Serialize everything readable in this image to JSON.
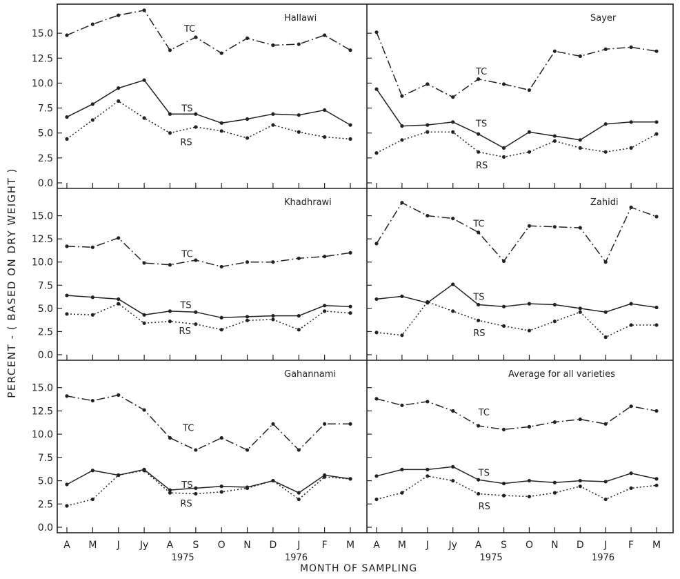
{
  "chart_data": {
    "type": "line",
    "ylabel": "PERCENT - ( BASED ON DRY WEIGHT )",
    "xlabel": "MONTH OF SAMPLING",
    "x_categories": [
      "A",
      "M",
      "J",
      "Jy",
      "A",
      "S",
      "O",
      "N",
      "D",
      "J",
      "F",
      "M"
    ],
    "year_labels": [
      {
        "text": "1975",
        "at_index": 4.5
      },
      {
        "text": "1976",
        "at_index": 8.9
      }
    ],
    "y_ticks": [
      "0.0",
      "2.5",
      "5.0",
      "7.5",
      "10.0",
      "12.5",
      "15.0"
    ],
    "ylim": [
      0,
      17.5
    ],
    "legend": "none",
    "grid": false,
    "panels": [
      {
        "title": "Hallawi",
        "series": [
          {
            "name": "TC",
            "style": "dashdot",
            "values": [
              14.8,
              15.9,
              16.8,
              17.3,
              13.3,
              14.6,
              13.0,
              14.5,
              13.8,
              13.9,
              14.8,
              13.3
            ],
            "label_at": [
              4.55,
              15.5
            ]
          },
          {
            "name": "TS",
            "style": "solid",
            "values": [
              6.6,
              7.9,
              9.5,
              10.3,
              6.9,
              6.9,
              6.0,
              6.4,
              6.9,
              6.8,
              7.3,
              5.8
            ],
            "label_at": [
              4.45,
              7.5
            ]
          },
          {
            "name": "RS",
            "style": "dotted",
            "values": [
              4.4,
              6.3,
              8.2,
              6.5,
              5.0,
              5.6,
              5.2,
              4.5,
              5.8,
              5.1,
              4.6,
              4.4
            ],
            "label_at": [
              4.4,
              4.1
            ]
          }
        ]
      },
      {
        "title": "Sayer",
        "series": [
          {
            "name": "TC",
            "style": "dashdot",
            "values": [
              15.1,
              8.7,
              9.9,
              8.6,
              10.4,
              9.9,
              9.3,
              13.2,
              12.7,
              13.4,
              13.6,
              13.2
            ],
            "label_at": [
              3.9,
              11.2
            ]
          },
          {
            "name": "TS",
            "style": "solid",
            "values": [
              9.4,
              5.7,
              5.8,
              6.1,
              4.9,
              3.5,
              5.1,
              4.7,
              4.3,
              5.9,
              6.1,
              6.1
            ],
            "label_at": [
              3.9,
              6.0
            ]
          },
          {
            "name": "RS",
            "style": "dotted",
            "values": [
              3.0,
              4.3,
              5.1,
              5.1,
              3.1,
              2.6,
              3.1,
              4.2,
              3.5,
              3.1,
              3.5,
              4.9
            ],
            "label_at": [
              3.9,
              1.8
            ]
          }
        ]
      },
      {
        "title": "Khadhrawi",
        "series": [
          {
            "name": "TC",
            "style": "dashdot",
            "values": [
              11.7,
              11.6,
              12.6,
              9.9,
              9.7,
              10.2,
              9.5,
              10.0,
              10.0,
              10.4,
              10.6,
              11.0
            ],
            "label_at": [
              4.45,
              10.9
            ]
          },
          {
            "name": "TS",
            "style": "solid",
            "values": [
              6.4,
              6.2,
              6.0,
              4.3,
              4.7,
              4.6,
              4.0,
              4.1,
              4.2,
              4.2,
              5.3,
              5.2
            ],
            "label_at": [
              4.4,
              5.4
            ]
          },
          {
            "name": "RS",
            "style": "dotted",
            "values": [
              4.4,
              4.3,
              5.5,
              3.4,
              3.6,
              3.3,
              2.7,
              3.7,
              3.8,
              2.7,
              4.7,
              4.5
            ],
            "label_at": [
              4.35,
              2.6
            ]
          }
        ]
      },
      {
        "title": "Zahidi",
        "series": [
          {
            "name": "TC",
            "style": "dashdot",
            "values": [
              12.0,
              16.4,
              15.0,
              14.7,
              13.2,
              10.1,
              13.9,
              13.8,
              13.7,
              10.0,
              15.9,
              14.9
            ],
            "label_at": [
              3.8,
              14.2
            ]
          },
          {
            "name": "TS",
            "style": "solid",
            "values": [
              6.0,
              6.3,
              5.6,
              7.6,
              5.4,
              5.2,
              5.5,
              5.4,
              5.0,
              4.6,
              5.5,
              5.1
            ],
            "label_at": [
              3.8,
              6.3
            ]
          },
          {
            "name": "RS",
            "style": "dotted",
            "values": [
              2.4,
              2.1,
              5.7,
              4.7,
              3.7,
              3.1,
              2.6,
              3.6,
              4.6,
              1.9,
              3.2,
              3.2
            ],
            "label_at": [
              3.8,
              2.4
            ]
          }
        ]
      },
      {
        "title": "Gahannami",
        "series": [
          {
            "name": "TC",
            "style": "dashdot",
            "values": [
              14.1,
              13.6,
              14.2,
              12.6,
              9.6,
              8.3,
              9.6,
              8.3,
              11.1,
              8.3,
              11.1,
              11.1
            ],
            "label_at": [
              4.5,
              10.7
            ]
          },
          {
            "name": "TS",
            "style": "solid",
            "values": [
              4.6,
              6.1,
              5.6,
              6.2,
              4.0,
              4.2,
              4.4,
              4.3,
              5.0,
              3.7,
              5.6,
              5.2
            ],
            "label_at": [
              4.45,
              4.6
            ]
          },
          {
            "name": "RS",
            "style": "dotted",
            "values": [
              2.3,
              3.0,
              5.6,
              6.1,
              3.7,
              3.6,
              3.8,
              4.2,
              5.0,
              3.0,
              5.4,
              5.2
            ],
            "label_at": [
              4.4,
              2.6
            ]
          }
        ]
      },
      {
        "title": "Average for all varieties",
        "series": [
          {
            "name": "TC",
            "style": "dashdot",
            "values": [
              13.8,
              13.1,
              13.5,
              12.5,
              10.9,
              10.5,
              10.8,
              11.3,
              11.6,
              11.1,
              13.0,
              12.5
            ],
            "label_at": [
              4.0,
              12.4
            ]
          },
          {
            "name": "TS",
            "style": "solid",
            "values": [
              5.5,
              6.2,
              6.2,
              6.5,
              5.1,
              4.7,
              5.0,
              4.8,
              5.0,
              4.9,
              5.8,
              5.2
            ],
            "label_at": [
              4.0,
              5.9
            ]
          },
          {
            "name": "RS",
            "style": "dotted",
            "values": [
              3.0,
              3.7,
              5.5,
              5.0,
              3.6,
              3.4,
              3.3,
              3.7,
              4.4,
              3.0,
              4.2,
              4.5
            ],
            "label_at": [
              4.0,
              2.3
            ]
          }
        ]
      }
    ]
  }
}
